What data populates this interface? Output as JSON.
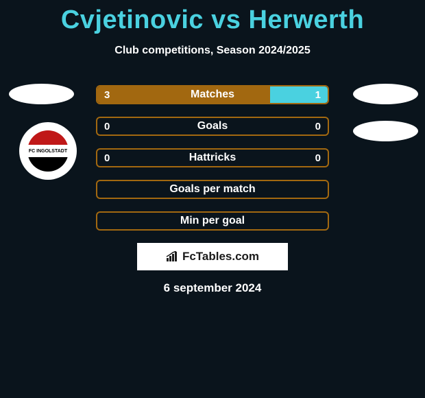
{
  "title": "Cvjetinovic vs Herwerth",
  "subtitle": "Club competitions, Season 2024/2025",
  "branding": "FcTables.com",
  "date": "6 september 2024",
  "club_logo_text": "FC INGOLSTADT",
  "colors": {
    "title": "#4ad1e0",
    "text": "#ffffff",
    "bg": "#0a141c",
    "row_border": "#a26810",
    "fill_left": "#a26810",
    "fill_right": "#4ad1e0"
  },
  "rows": [
    {
      "label": "Matches",
      "left_val": "3",
      "right_val": "1",
      "left_pct": 75,
      "right_pct": 25,
      "left_fill": "#a26810",
      "right_fill": "#4ad1e0",
      "border": "#a26810"
    },
    {
      "label": "Goals",
      "left_val": "0",
      "right_val": "0",
      "left_pct": 0,
      "right_pct": 0,
      "left_fill": "#a26810",
      "right_fill": "#4ad1e0",
      "border": "#a26810"
    },
    {
      "label": "Hattricks",
      "left_val": "0",
      "right_val": "0",
      "left_pct": 0,
      "right_pct": 0,
      "left_fill": "#a26810",
      "right_fill": "#4ad1e0",
      "border": "#a26810"
    },
    {
      "label": "Goals per match",
      "left_val": "",
      "right_val": "",
      "left_pct": 0,
      "right_pct": 0,
      "left_fill": "#a26810",
      "right_fill": "#4ad1e0",
      "border": "#a26810"
    },
    {
      "label": "Min per goal",
      "left_val": "",
      "right_val": "",
      "left_pct": 0,
      "right_pct": 0,
      "left_fill": "#a26810",
      "right_fill": "#4ad1e0",
      "border": "#a26810"
    }
  ]
}
